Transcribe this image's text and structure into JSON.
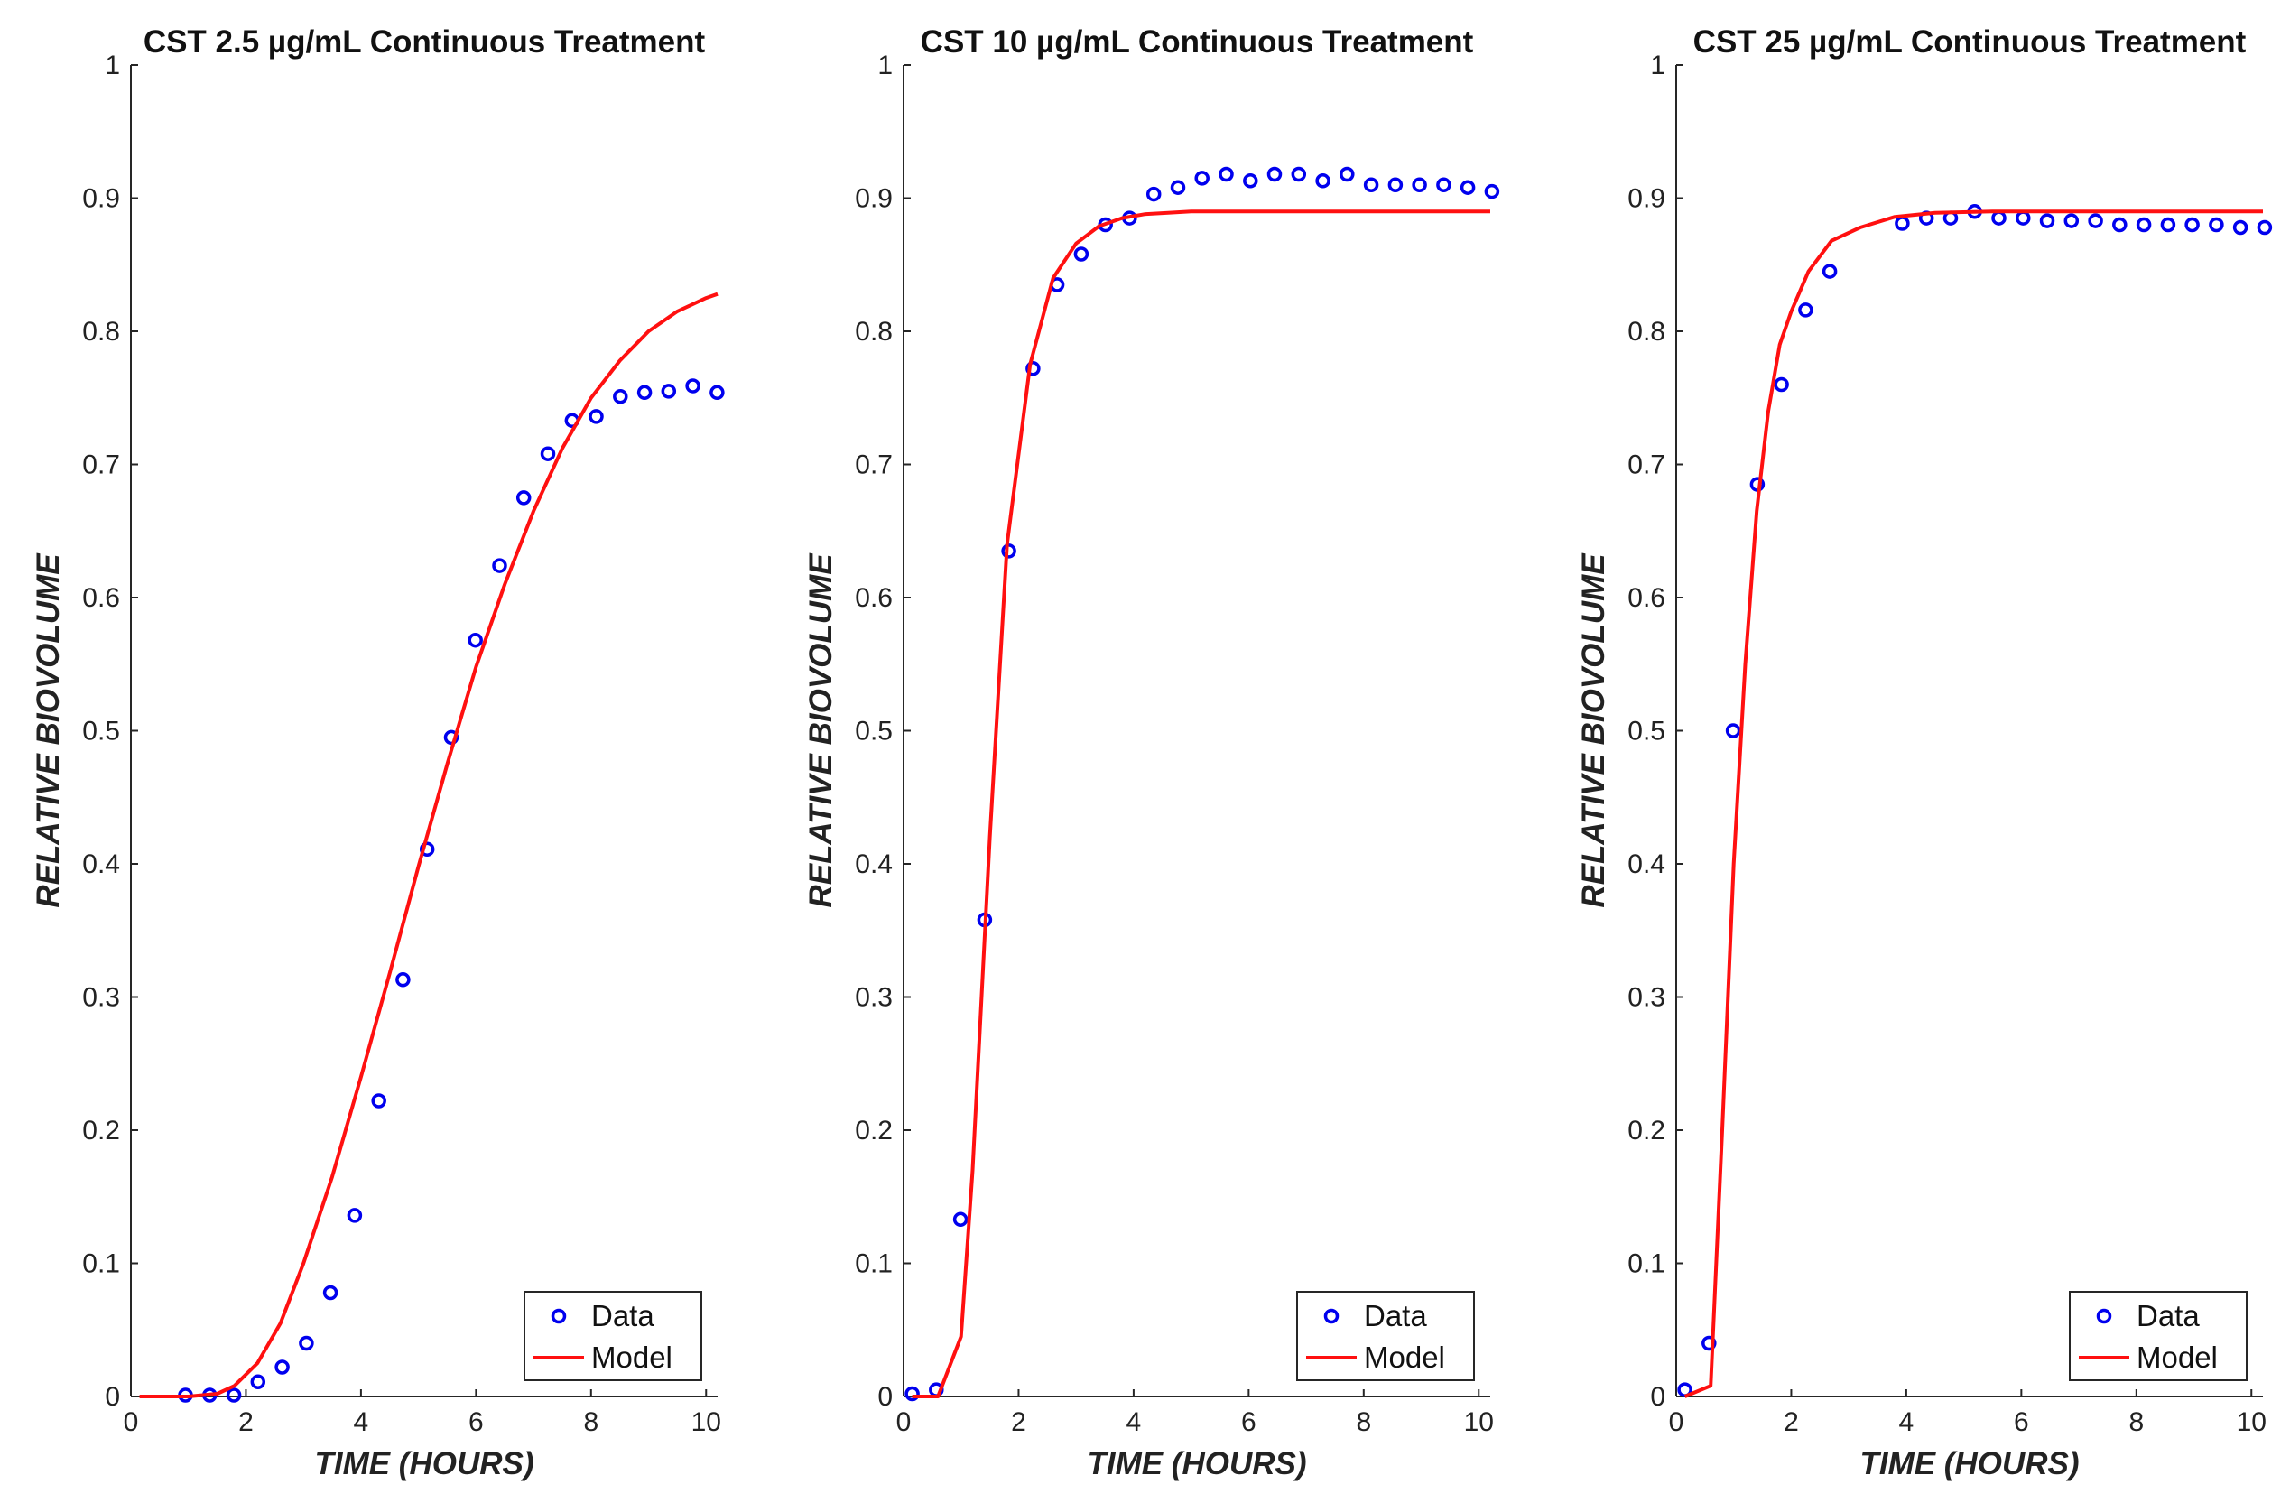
{
  "figure": {
    "colors": {
      "data": "#0000ee",
      "model": "#ff1010",
      "axis": "#262626",
      "background": "#ffffff"
    }
  },
  "chart_data": [
    {
      "type": "line",
      "title": "CST 2.5 µg/mL Continuous Treatment",
      "xlabel": "TIME (HOURS)",
      "ylabel": "RELATIVE BIOVOLUME",
      "xlim": [
        0,
        10.2
      ],
      "ylim": [
        0,
        1
      ],
      "xticks": [
        0,
        2,
        4,
        6,
        8,
        10
      ],
      "yticks": [
        0,
        0.1,
        0.2,
        0.3,
        0.4,
        0.5,
        0.6,
        0.7,
        0.8,
        0.9,
        1
      ],
      "grid": false,
      "legend": {
        "position": "bottom-right",
        "entries": [
          "Data",
          "Model"
        ]
      },
      "series": [
        {
          "name": "Data",
          "style": "markers",
          "x": [
            0.95,
            1.37,
            1.79,
            2.21,
            2.63,
            3.05,
            3.47,
            3.89,
            4.31,
            4.73,
            5.15,
            5.57,
            5.99,
            6.41,
            6.83,
            7.25,
            7.67,
            8.09,
            8.51,
            8.93,
            9.35,
            9.77,
            10.19
          ],
          "y": [
            0.001,
            0.001,
            0.001,
            0.011,
            0.022,
            0.04,
            0.078,
            0.136,
            0.222,
            0.313,
            0.411,
            0.495,
            0.568,
            0.624,
            0.675,
            0.708,
            0.733,
            0.736,
            0.751,
            0.754,
            0.755,
            0.759,
            0.754
          ]
        },
        {
          "name": "Model",
          "style": "line",
          "x": [
            0.15,
            0.5,
            1.0,
            1.5,
            1.8,
            2.2,
            2.6,
            3.0,
            3.5,
            4.0,
            4.5,
            5.0,
            5.5,
            6.0,
            6.5,
            7.0,
            7.5,
            8.0,
            8.5,
            9.0,
            9.5,
            10.0,
            10.2
          ],
          "y": [
            0,
            0,
            0,
            0.002,
            0.008,
            0.025,
            0.055,
            0.1,
            0.165,
            0.24,
            0.318,
            0.398,
            0.475,
            0.548,
            0.61,
            0.665,
            0.712,
            0.75,
            0.778,
            0.8,
            0.815,
            0.825,
            0.828
          ]
        }
      ]
    },
    {
      "type": "line",
      "title": "CST 10 µg/mL Continuous Treatment",
      "xlabel": "TIME (HOURS)",
      "ylabel": "RELATIVE BIOVOLUME",
      "xlim": [
        0,
        10.2
      ],
      "ylim": [
        0,
        1
      ],
      "xticks": [
        0,
        2,
        4,
        6,
        8,
        10
      ],
      "yticks": [
        0,
        0.1,
        0.2,
        0.3,
        0.4,
        0.5,
        0.6,
        0.7,
        0.8,
        0.9,
        1
      ],
      "grid": false,
      "legend": {
        "position": "bottom-right",
        "entries": [
          "Data",
          "Model"
        ]
      },
      "series": [
        {
          "name": "Data",
          "style": "markers",
          "x": [
            0.15,
            0.57,
            0.99,
            1.41,
            1.83,
            2.25,
            2.67,
            3.09,
            3.51,
            3.93,
            4.35,
            4.77,
            5.19,
            5.61,
            6.03,
            6.45,
            6.87,
            7.29,
            7.71,
            8.13,
            8.55,
            8.97,
            9.39,
            9.81,
            10.23
          ],
          "y": [
            0.002,
            0.005,
            0.133,
            0.358,
            0.635,
            0.772,
            0.835,
            0.858,
            0.88,
            0.885,
            0.903,
            0.908,
            0.915,
            0.918,
            0.913,
            0.918,
            0.918,
            0.913,
            0.918,
            0.91,
            0.91,
            0.91,
            0.91,
            0.908,
            0.905
          ]
        },
        {
          "name": "Model",
          "style": "line",
          "x": [
            0.15,
            0.6,
            1.0,
            1.2,
            1.5,
            1.8,
            2.2,
            2.6,
            3.0,
            3.4,
            3.8,
            4.2,
            4.6,
            5.0,
            6.0,
            7.0,
            8.0,
            9.0,
            10.2
          ],
          "y": [
            0,
            0,
            0.045,
            0.17,
            0.42,
            0.64,
            0.775,
            0.84,
            0.866,
            0.879,
            0.885,
            0.888,
            0.889,
            0.89,
            0.89,
            0.89,
            0.89,
            0.89,
            0.89
          ]
        }
      ]
    },
    {
      "type": "line",
      "title": "CST 25 µg/mL Continuous Treatment",
      "xlabel": "TIME (HOURS)",
      "ylabel": "RELATIVE BIOVOLUME",
      "xlim": [
        0,
        10.2
      ],
      "ylim": [
        0,
        1
      ],
      "xticks": [
        0,
        2,
        4,
        6,
        8,
        10
      ],
      "yticks": [
        0,
        0.1,
        0.2,
        0.3,
        0.4,
        0.5,
        0.6,
        0.7,
        0.8,
        0.9,
        1
      ],
      "grid": false,
      "legend": {
        "position": "bottom-right",
        "entries": [
          "Data",
          "Model"
        ]
      },
      "series": [
        {
          "name": "Data",
          "style": "markers",
          "x": [
            0.15,
            0.57,
            0.99,
            1.41,
            1.83,
            2.25,
            2.67,
            3.93,
            4.35,
            4.77,
            5.19,
            5.61,
            6.03,
            6.45,
            6.87,
            7.29,
            7.71,
            8.13,
            8.55,
            8.97,
            9.39,
            9.81,
            10.23
          ],
          "y": [
            0.005,
            0.04,
            0.5,
            0.685,
            0.76,
            0.816,
            0.845,
            0.881,
            0.885,
            0.885,
            0.89,
            0.885,
            0.885,
            0.883,
            0.883,
            0.883,
            0.88,
            0.88,
            0.88,
            0.88,
            0.88,
            0.878,
            0.878
          ]
        },
        {
          "name": "Model",
          "style": "line",
          "x": [
            0.15,
            0.6,
            0.8,
            1.0,
            1.2,
            1.4,
            1.6,
            1.8,
            2.0,
            2.3,
            2.7,
            3.2,
            3.8,
            4.5,
            5.5,
            7.0,
            8.5,
            10.2
          ],
          "y": [
            0,
            0.008,
            0.2,
            0.4,
            0.55,
            0.665,
            0.74,
            0.79,
            0.815,
            0.845,
            0.868,
            0.878,
            0.886,
            0.889,
            0.89,
            0.89,
            0.89,
            0.89
          ]
        }
      ]
    }
  ]
}
